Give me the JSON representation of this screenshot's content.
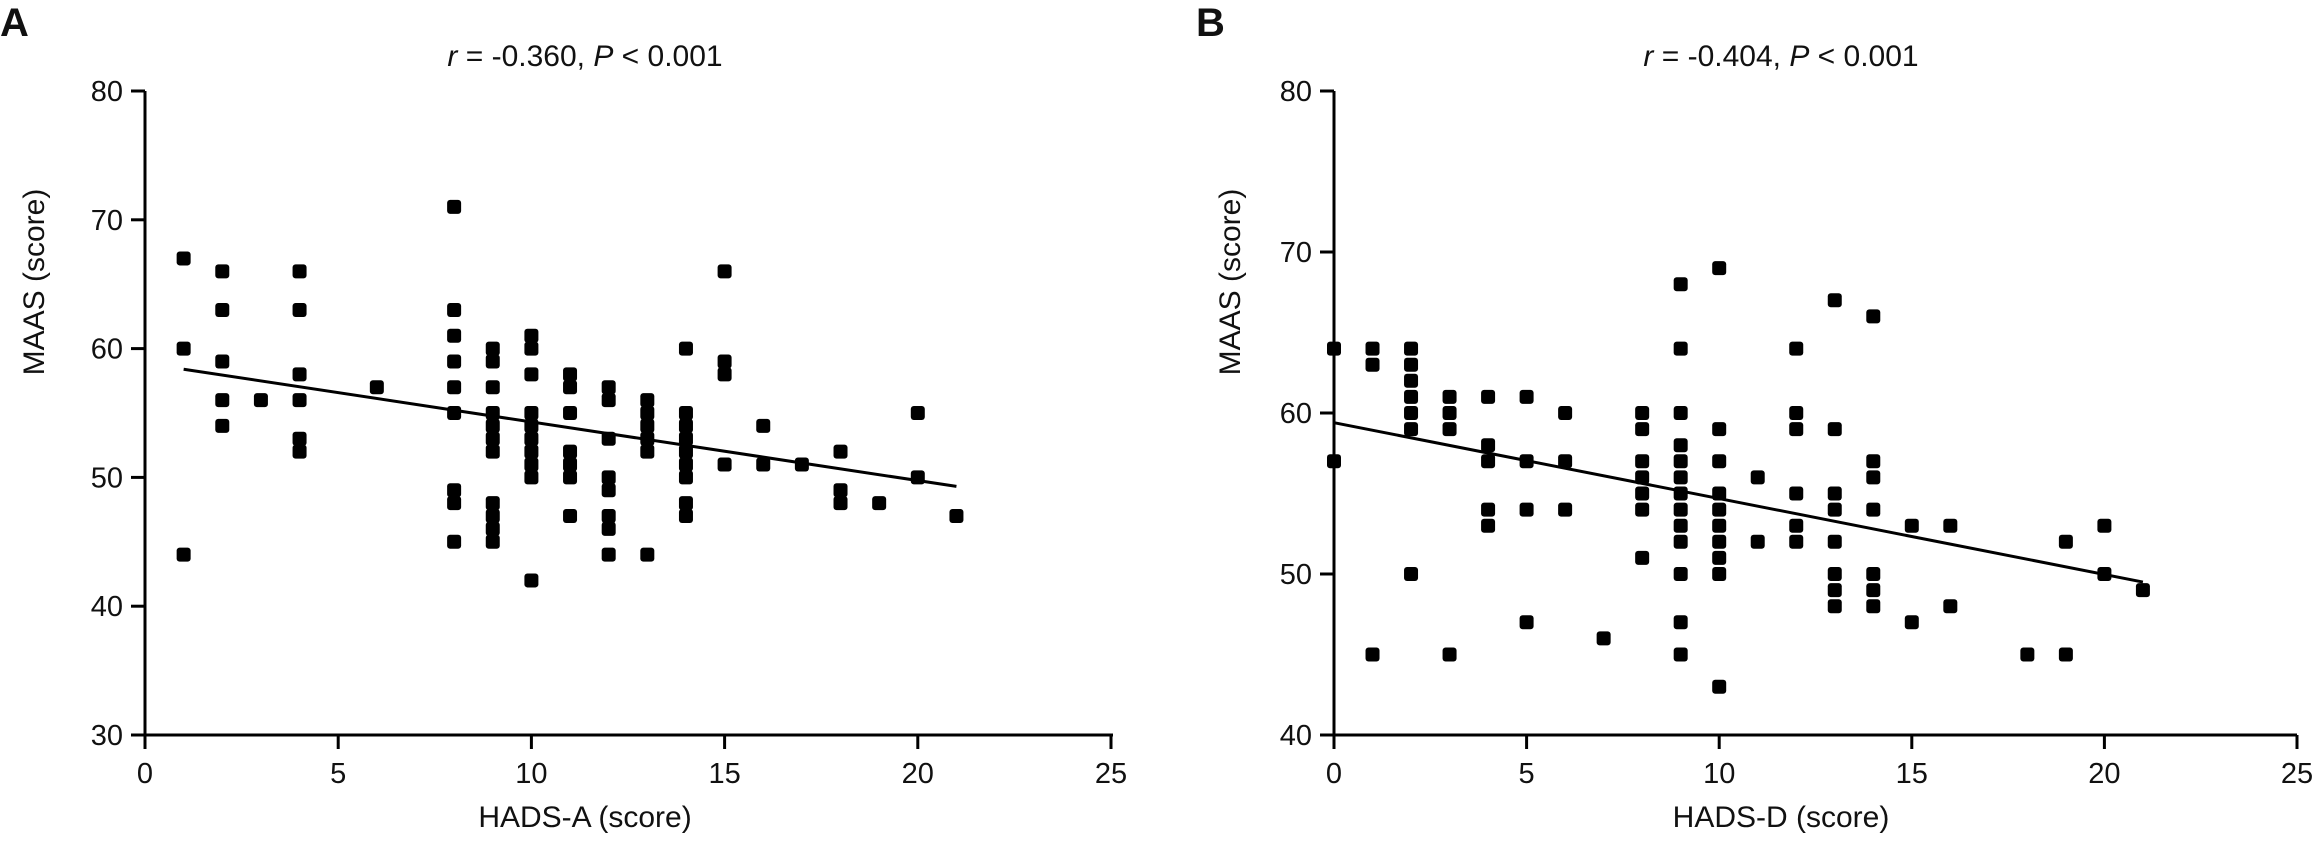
{
  "chart_data": [
    {
      "type": "scatter",
      "panel": "A",
      "title_stat": "r",
      "title_value": " = -0.360, ",
      "title_p": "P",
      "title_rest": " < 0.001",
      "xlabel": "HADS-A (score)",
      "ylabel": "MAAS (score)",
      "xlim": [
        0,
        25
      ],
      "ylim": [
        30,
        80
      ],
      "xticks": [
        0,
        5,
        10,
        15,
        20,
        25
      ],
      "yticks": [
        30,
        40,
        50,
        60,
        70,
        80
      ],
      "grid": false,
      "regression_line": {
        "x": [
          1,
          21
        ],
        "y": [
          58.4,
          49.3
        ]
      },
      "points": [
        [
          1,
          67
        ],
        [
          1,
          60
        ],
        [
          1,
          44
        ],
        [
          2,
          66
        ],
        [
          2,
          63
        ],
        [
          2,
          59
        ],
        [
          2,
          56
        ],
        [
          2,
          54
        ],
        [
          3,
          56
        ],
        [
          4,
          66
        ],
        [
          4,
          63
        ],
        [
          4,
          58
        ],
        [
          4,
          56
        ],
        [
          4,
          53
        ],
        [
          4,
          52
        ],
        [
          6,
          57
        ],
        [
          8,
          71
        ],
        [
          8,
          63
        ],
        [
          8,
          61
        ],
        [
          8,
          59
        ],
        [
          8,
          57
        ],
        [
          8,
          55
        ],
        [
          8,
          49
        ],
        [
          8,
          48
        ],
        [
          8,
          45
        ],
        [
          9,
          60
        ],
        [
          9,
          59
        ],
        [
          9,
          57
        ],
        [
          9,
          55
        ],
        [
          9,
          54
        ],
        [
          9,
          53
        ],
        [
          9,
          52
        ],
        [
          9,
          48
        ],
        [
          9,
          47
        ],
        [
          9,
          46
        ],
        [
          9,
          45
        ],
        [
          10,
          61
        ],
        [
          10,
          60
        ],
        [
          10,
          58
        ],
        [
          10,
          55
        ],
        [
          10,
          54
        ],
        [
          10,
          53
        ],
        [
          10,
          52
        ],
        [
          10,
          51
        ],
        [
          10,
          50
        ],
        [
          10,
          42
        ],
        [
          11,
          58
        ],
        [
          11,
          57
        ],
        [
          11,
          55
        ],
        [
          11,
          52
        ],
        [
          11,
          51
        ],
        [
          11,
          50
        ],
        [
          11,
          47
        ],
        [
          12,
          57
        ],
        [
          12,
          56
        ],
        [
          12,
          53
        ],
        [
          12,
          50
        ],
        [
          12,
          49
        ],
        [
          12,
          47
        ],
        [
          12,
          46
        ],
        [
          12,
          44
        ],
        [
          13,
          56
        ],
        [
          13,
          55
        ],
        [
          13,
          54
        ],
        [
          13,
          53
        ],
        [
          13,
          52
        ],
        [
          13,
          44
        ],
        [
          14,
          60
        ],
        [
          14,
          55
        ],
        [
          14,
          54
        ],
        [
          14,
          53
        ],
        [
          14,
          52
        ],
        [
          14,
          51
        ],
        [
          14,
          50
        ],
        [
          14,
          48
        ],
        [
          14,
          47
        ],
        [
          15,
          66
        ],
        [
          15,
          59
        ],
        [
          15,
          58
        ],
        [
          15,
          51
        ],
        [
          16,
          54
        ],
        [
          16,
          51
        ],
        [
          17,
          51
        ],
        [
          18,
          52
        ],
        [
          18,
          49
        ],
        [
          18,
          48
        ],
        [
          19,
          48
        ],
        [
          20,
          55
        ],
        [
          20,
          50
        ],
        [
          21,
          47
        ]
      ]
    },
    {
      "type": "scatter",
      "panel": "B",
      "title_stat": "r",
      "title_value": " = -0.404, ",
      "title_p": "P",
      "title_rest": " < 0.001",
      "xlabel": "HADS-D (score)",
      "ylabel": "MAAS (score)",
      "xlim": [
        0,
        25
      ],
      "ylim": [
        40,
        80
      ],
      "xticks": [
        0,
        5,
        10,
        15,
        20,
        25
      ],
      "yticks": [
        40,
        50,
        60,
        70,
        80
      ],
      "grid": false,
      "regression_line": {
        "x": [
          0,
          21
        ],
        "y": [
          59.4,
          49.5
        ]
      },
      "points": [
        [
          0,
          64
        ],
        [
          0,
          57
        ],
        [
          1,
          64
        ],
        [
          1,
          63
        ],
        [
          1,
          45
        ],
        [
          2,
          64
        ],
        [
          2,
          63
        ],
        [
          2,
          62
        ],
        [
          2,
          61
        ],
        [
          2,
          60
        ],
        [
          2,
          59
        ],
        [
          2,
          50
        ],
        [
          3,
          61
        ],
        [
          3,
          60
        ],
        [
          3,
          59
        ],
        [
          3,
          45
        ],
        [
          4,
          61
        ],
        [
          4,
          58
        ],
        [
          4,
          57
        ],
        [
          4,
          54
        ],
        [
          4,
          53
        ],
        [
          5,
          61
        ],
        [
          5,
          57
        ],
        [
          5,
          54
        ],
        [
          5,
          47
        ],
        [
          6,
          60
        ],
        [
          6,
          57
        ],
        [
          6,
          54
        ],
        [
          7,
          46
        ],
        [
          8,
          60
        ],
        [
          8,
          59
        ],
        [
          8,
          57
        ],
        [
          8,
          56
        ],
        [
          8,
          55
        ],
        [
          8,
          54
        ],
        [
          8,
          51
        ],
        [
          9,
          68
        ],
        [
          9,
          64
        ],
        [
          9,
          60
        ],
        [
          9,
          58
        ],
        [
          9,
          57
        ],
        [
          9,
          56
        ],
        [
          9,
          55
        ],
        [
          9,
          54
        ],
        [
          9,
          53
        ],
        [
          9,
          52
        ],
        [
          9,
          50
        ],
        [
          9,
          47
        ],
        [
          9,
          45
        ],
        [
          10,
          69
        ],
        [
          10,
          59
        ],
        [
          10,
          57
        ],
        [
          10,
          55
        ],
        [
          10,
          54
        ],
        [
          10,
          53
        ],
        [
          10,
          52
        ],
        [
          10,
          51
        ],
        [
          10,
          50
        ],
        [
          10,
          43
        ],
        [
          11,
          56
        ],
        [
          11,
          52
        ],
        [
          12,
          64
        ],
        [
          12,
          60
        ],
        [
          12,
          59
        ],
        [
          12,
          55
        ],
        [
          12,
          53
        ],
        [
          12,
          52
        ],
        [
          13,
          67
        ],
        [
          13,
          59
        ],
        [
          13,
          55
        ],
        [
          13,
          54
        ],
        [
          13,
          52
        ],
        [
          13,
          50
        ],
        [
          13,
          49
        ],
        [
          13,
          48
        ],
        [
          14,
          66
        ],
        [
          14,
          57
        ],
        [
          14,
          56
        ],
        [
          14,
          54
        ],
        [
          14,
          50
        ],
        [
          14,
          49
        ],
        [
          14,
          48
        ],
        [
          15,
          53
        ],
        [
          15,
          47
        ],
        [
          16,
          53
        ],
        [
          16,
          48
        ],
        [
          18,
          45
        ],
        [
          19,
          52
        ],
        [
          19,
          45
        ],
        [
          20,
          53
        ],
        [
          20,
          50
        ],
        [
          21,
          49
        ]
      ]
    }
  ]
}
